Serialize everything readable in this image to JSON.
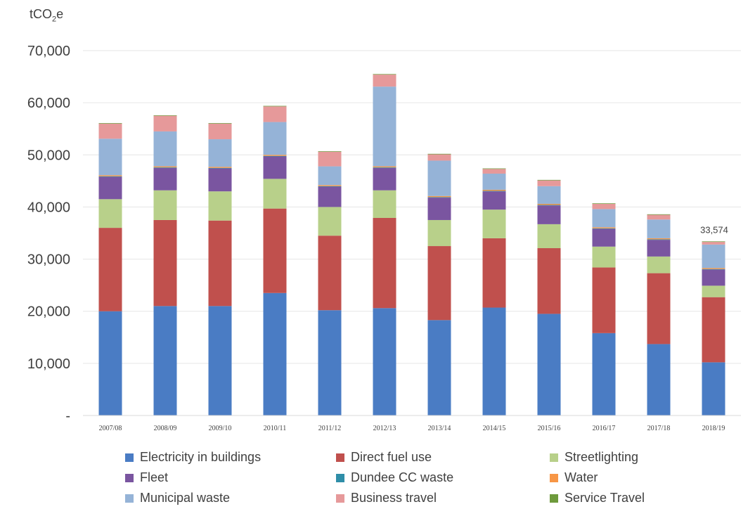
{
  "chart_data": {
    "type": "bar",
    "stacked": true,
    "ylabel_prefix": "tCO",
    "ylabel_sub": "2",
    "ylabel_suffix": "e",
    "ylim": [
      0,
      70000
    ],
    "yticks": [
      0,
      10000,
      20000,
      30000,
      40000,
      50000,
      60000,
      70000
    ],
    "ytick_labels": [
      "-",
      "10,000",
      "20,000",
      "30,000",
      "40,000",
      "50,000",
      "60,000",
      "70,000"
    ],
    "categories": [
      "2007/08",
      "2008/09",
      "2009/10",
      "2010/11",
      "2011/12",
      "2012/13",
      "2013/14",
      "2014/15",
      "2015/16",
      "2016/17",
      "2017/18",
      "2018/19"
    ],
    "series": [
      {
        "name": "Electricity in buildings",
        "color": "#4a7cc4",
        "values": [
          20000,
          21000,
          21000,
          23500,
          20200,
          20600,
          18300,
          20700,
          19500,
          15800,
          13700,
          10200
        ]
      },
      {
        "name": "Direct fuel use",
        "color": "#c0504d",
        "values": [
          16000,
          16500,
          16400,
          16200,
          14300,
          17300,
          14200,
          13300,
          12600,
          12600,
          13600,
          12500
        ]
      },
      {
        "name": "Streetlighting",
        "color": "#b8d08a",
        "values": [
          5500,
          5700,
          5600,
          5700,
          5500,
          5300,
          5000,
          5500,
          4600,
          4000,
          3200,
          2200
        ]
      },
      {
        "name": "Fleet",
        "color": "#7a55a0",
        "values": [
          4300,
          4300,
          4400,
          4300,
          3900,
          4300,
          4300,
          3500,
          3600,
          3400,
          3200,
          3100
        ]
      },
      {
        "name": "Dundee CC waste",
        "color": "#2f8ea8",
        "values": [
          100,
          100,
          100,
          100,
          100,
          100,
          100,
          100,
          100,
          100,
          100,
          100
        ]
      },
      {
        "name": "Water",
        "color": "#f79646",
        "values": [
          200,
          200,
          200,
          200,
          200,
          200,
          200,
          200,
          200,
          200,
          200,
          200
        ]
      },
      {
        "name": "Municipal waste",
        "color": "#95b3d7",
        "values": [
          7000,
          6700,
          5300,
          6300,
          3600,
          15300,
          6800,
          3100,
          3400,
          3500,
          3600,
          4500
        ]
      },
      {
        "name": "Business travel",
        "color": "#e6999a",
        "values": [
          2900,
          3000,
          3000,
          3000,
          2800,
          2300,
          1200,
          900,
          1100,
          1000,
          900,
          500
        ]
      },
      {
        "name": "Service Travel",
        "color": "#6e9a3c",
        "values": [
          100,
          100,
          100,
          100,
          100,
          100,
          100,
          100,
          100,
          100,
          100,
          100
        ]
      }
    ],
    "annotations": [
      {
        "category": "2018/19",
        "text": "33,574"
      }
    ],
    "legend_position": "bottom",
    "grid": true
  }
}
